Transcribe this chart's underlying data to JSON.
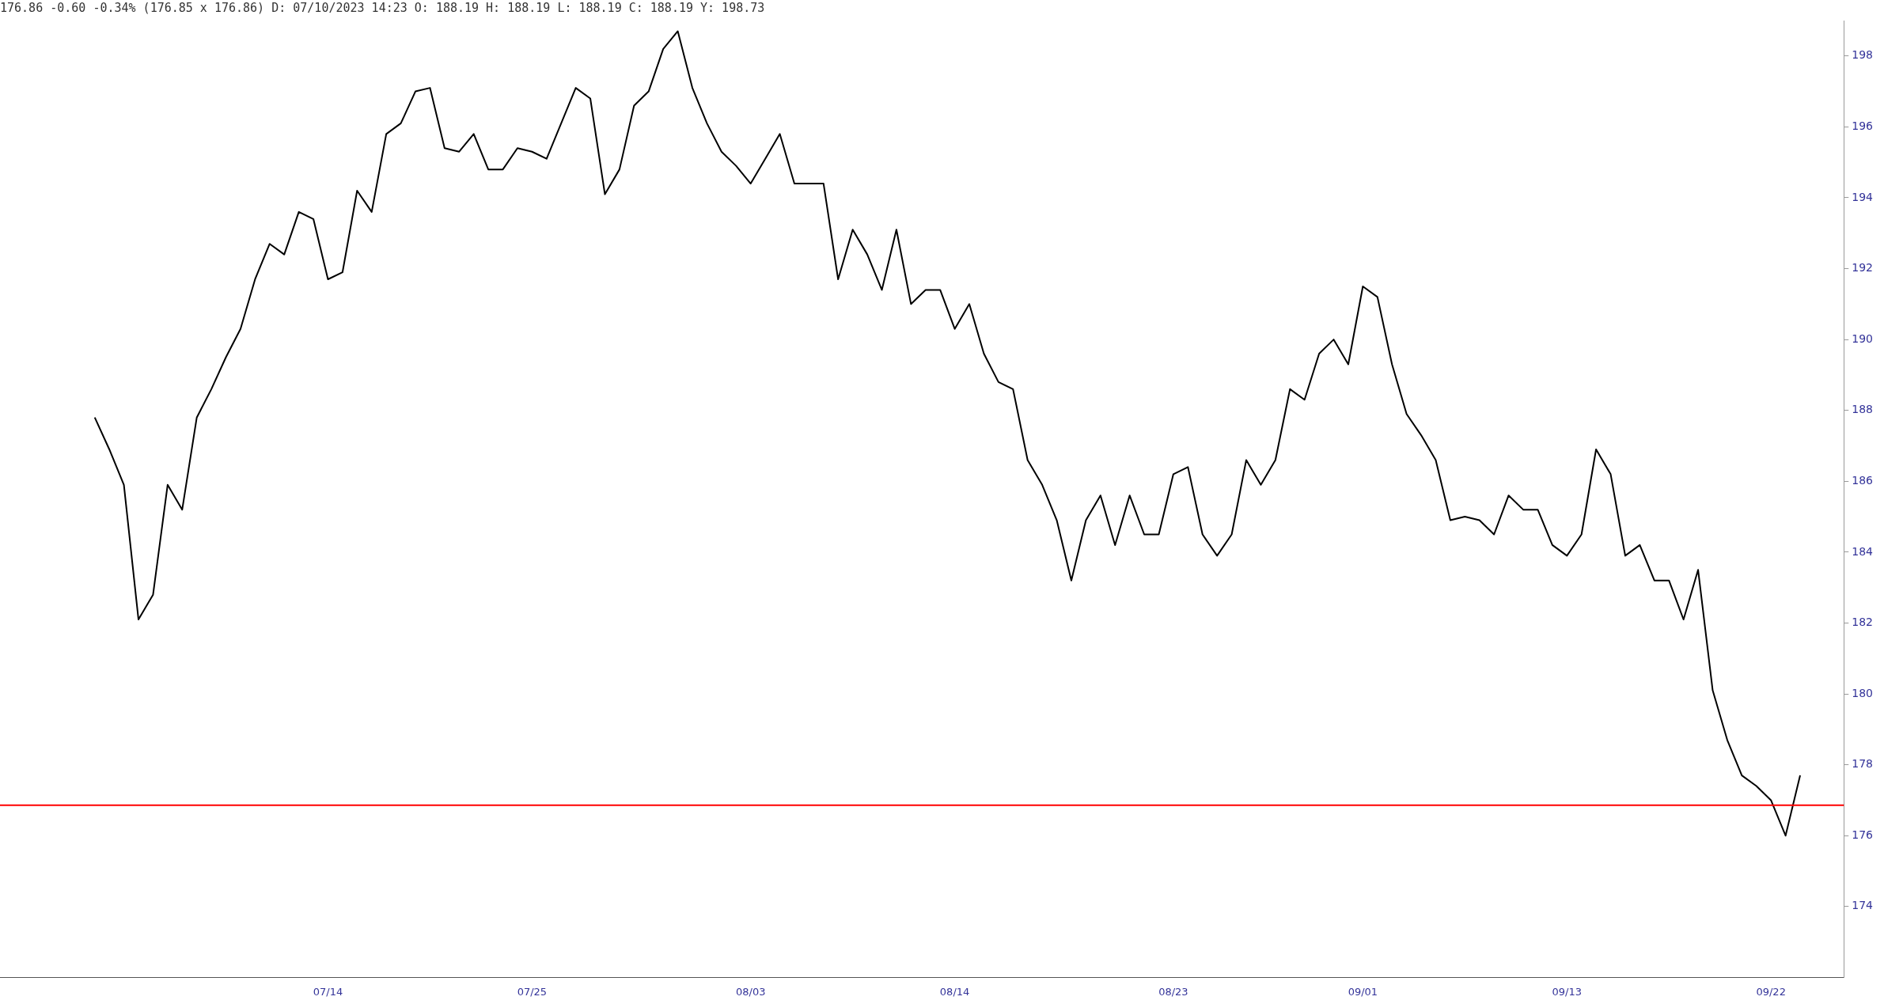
{
  "chart_data": {
    "type": "line",
    "title": "176.86 -0.60 -0.34% (176.85 x 176.86) D: 07/10/2023 14:23 O: 188.19 H: 188.19 L: 188.19 C: 188.19 Y: 198.73",
    "categories": [
      null,
      null,
      null,
      null,
      null,
      null,
      null,
      null,
      null,
      null,
      null,
      null,
      null,
      null,
      null,
      null,
      "07/14",
      null,
      null,
      null,
      null,
      null,
      null,
      null,
      null,
      null,
      null,
      null,
      null,
      null,
      "07/25",
      null,
      null,
      null,
      null,
      null,
      null,
      null,
      null,
      null,
      null,
      null,
      null,
      null,
      null,
      "08/03",
      null,
      null,
      null,
      null,
      null,
      null,
      null,
      null,
      null,
      null,
      null,
      null,
      null,
      "08/14",
      null,
      null,
      null,
      null,
      null,
      null,
      null,
      null,
      null,
      null,
      null,
      null,
      null,
      null,
      "08/23",
      null,
      null,
      null,
      null,
      null,
      null,
      null,
      null,
      null,
      null,
      null,
      null,
      "09/01",
      null,
      null,
      null,
      null,
      null,
      null,
      null,
      null,
      null,
      null,
      null,
      null,
      null,
      "09/13",
      null,
      null,
      null,
      null,
      null,
      null,
      null,
      null,
      null,
      null,
      null,
      null,
      null,
      "09/22",
      null,
      null
    ],
    "series": [
      {
        "color": "#000000",
        "values": [
          187.8,
          186.9,
          185.9,
          182.1,
          182.8,
          185.9,
          185.2,
          187.8,
          188.6,
          189.5,
          190.3,
          191.7,
          192.7,
          192.4,
          193.6,
          193.4,
          191.7,
          191.9,
          194.2,
          193.6,
          195.8,
          196.1,
          197.0,
          197.1,
          195.4,
          195.3,
          195.8,
          194.8,
          194.8,
          195.4,
          195.3,
          195.1,
          196.1,
          197.1,
          196.8,
          194.1,
          194.8,
          196.6,
          197.0,
          198.2,
          198.7,
          197.1,
          196.1,
          195.3,
          194.9,
          194.4,
          195.1,
          195.8,
          194.4,
          194.4,
          194.4,
          191.7,
          193.1,
          192.4,
          191.4,
          193.1,
          191.0,
          191.4,
          191.4,
          190.3,
          191.0,
          189.6,
          188.8,
          188.6,
          186.6,
          185.9,
          184.9,
          183.2,
          184.9,
          185.6,
          184.2,
          185.6,
          184.5,
          184.5,
          186.2,
          186.4,
          184.5,
          183.9,
          184.5,
          186.6,
          185.9,
          186.6,
          188.6,
          188.3,
          189.6,
          190.0,
          189.3,
          191.5,
          191.2,
          189.3,
          187.9,
          187.3,
          186.6,
          184.9,
          185.0,
          184.9,
          184.5,
          185.6,
          185.2,
          185.2,
          184.2,
          183.9,
          184.5,
          186.9,
          186.2,
          183.9,
          184.2,
          183.2,
          183.2,
          182.1,
          183.5,
          180.1,
          178.7,
          177.7,
          177.4,
          177.0,
          176.0,
          177.7
        ]
      }
    ],
    "ylim": [
      172,
      199
    ],
    "yticks": [
      174,
      176,
      178,
      180,
      182,
      184,
      186,
      188,
      190,
      192,
      194,
      196,
      198
    ],
    "marker": "none",
    "line_style": "solid",
    "ref_lines": [
      {
        "axis": "y",
        "value": 176.86,
        "color": "#ff0000"
      }
    ]
  }
}
